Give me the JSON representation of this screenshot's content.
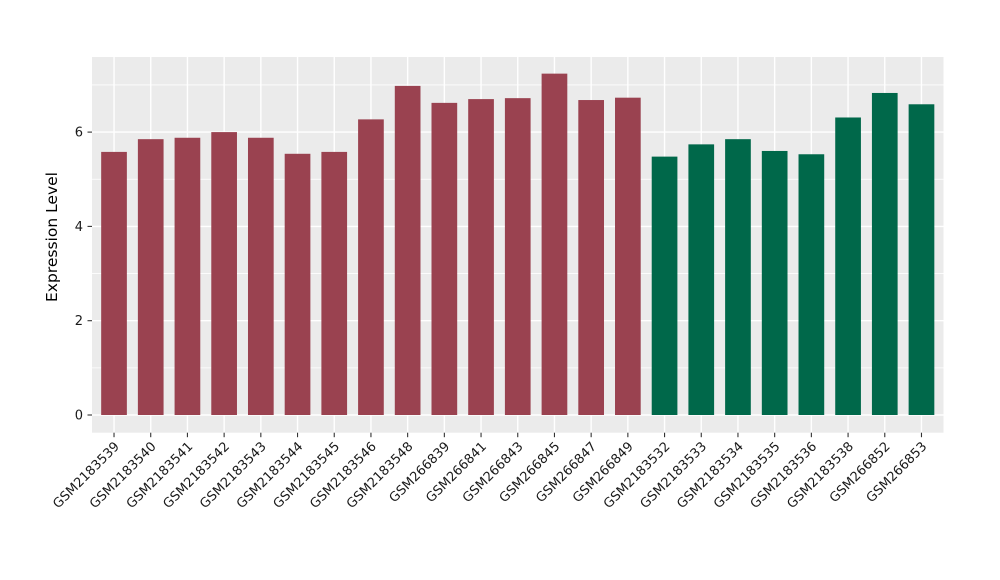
{
  "chart_data": {
    "type": "bar",
    "title": "",
    "xlabel": "",
    "ylabel": "Expression Level",
    "legend": "none",
    "panel": {
      "background": "#EBEBEB",
      "gridline_color": "#FFFFFF",
      "grid_major_y": [
        0,
        2,
        4,
        6
      ],
      "grid_minor_y": [
        1,
        3,
        5,
        7
      ],
      "grid_major_x": "one vertical line per bar center",
      "ylim": [
        -0.36,
        7.6
      ]
    },
    "axis": {
      "ytick_labels": [
        "0",
        "2",
        "4",
        "6"
      ],
      "ytick_values": [
        0,
        2,
        4,
        6
      ],
      "xtick_label_angle_deg": 45,
      "text_color": "#1A1A1A",
      "tick_color": "#333333"
    },
    "groups": {
      "group1": {
        "color": "#9A4250"
      },
      "group2": {
        "color": "#00684A"
      }
    },
    "bars": [
      {
        "label": "GSM2183539",
        "value": 5.58,
        "group": "group1"
      },
      {
        "label": "GSM2183540",
        "value": 5.85,
        "group": "group1"
      },
      {
        "label": "GSM2183541",
        "value": 5.88,
        "group": "group1"
      },
      {
        "label": "GSM2183542",
        "value": 6.0,
        "group": "group1"
      },
      {
        "label": "GSM2183543",
        "value": 5.88,
        "group": "group1"
      },
      {
        "label": "GSM2183544",
        "value": 5.54,
        "group": "group1"
      },
      {
        "label": "GSM2183545",
        "value": 5.58,
        "group": "group1"
      },
      {
        "label": "GSM2183546",
        "value": 6.27,
        "group": "group1"
      },
      {
        "label": "GSM2183548",
        "value": 6.98,
        "group": "group1"
      },
      {
        "label": "GSM266839",
        "value": 6.62,
        "group": "group1"
      },
      {
        "label": "GSM266841",
        "value": 6.7,
        "group": "group1"
      },
      {
        "label": "GSM266843",
        "value": 6.72,
        "group": "group1"
      },
      {
        "label": "GSM266845",
        "value": 7.24,
        "group": "group1"
      },
      {
        "label": "GSM266847",
        "value": 6.68,
        "group": "group1"
      },
      {
        "label": "GSM266849",
        "value": 6.73,
        "group": "group1"
      },
      {
        "label": "GSM2183532",
        "value": 5.48,
        "group": "group2"
      },
      {
        "label": "GSM2183533",
        "value": 5.74,
        "group": "group2"
      },
      {
        "label": "GSM2183534",
        "value": 5.85,
        "group": "group2"
      },
      {
        "label": "GSM2183535",
        "value": 5.6,
        "group": "group2"
      },
      {
        "label": "GSM2183536",
        "value": 5.53,
        "group": "group2"
      },
      {
        "label": "GSM2183538",
        "value": 6.31,
        "group": "group2"
      },
      {
        "label": "GSM266852",
        "value": 6.83,
        "group": "group2"
      },
      {
        "label": "GSM266853",
        "value": 6.59,
        "group": "group2"
      }
    ]
  }
}
